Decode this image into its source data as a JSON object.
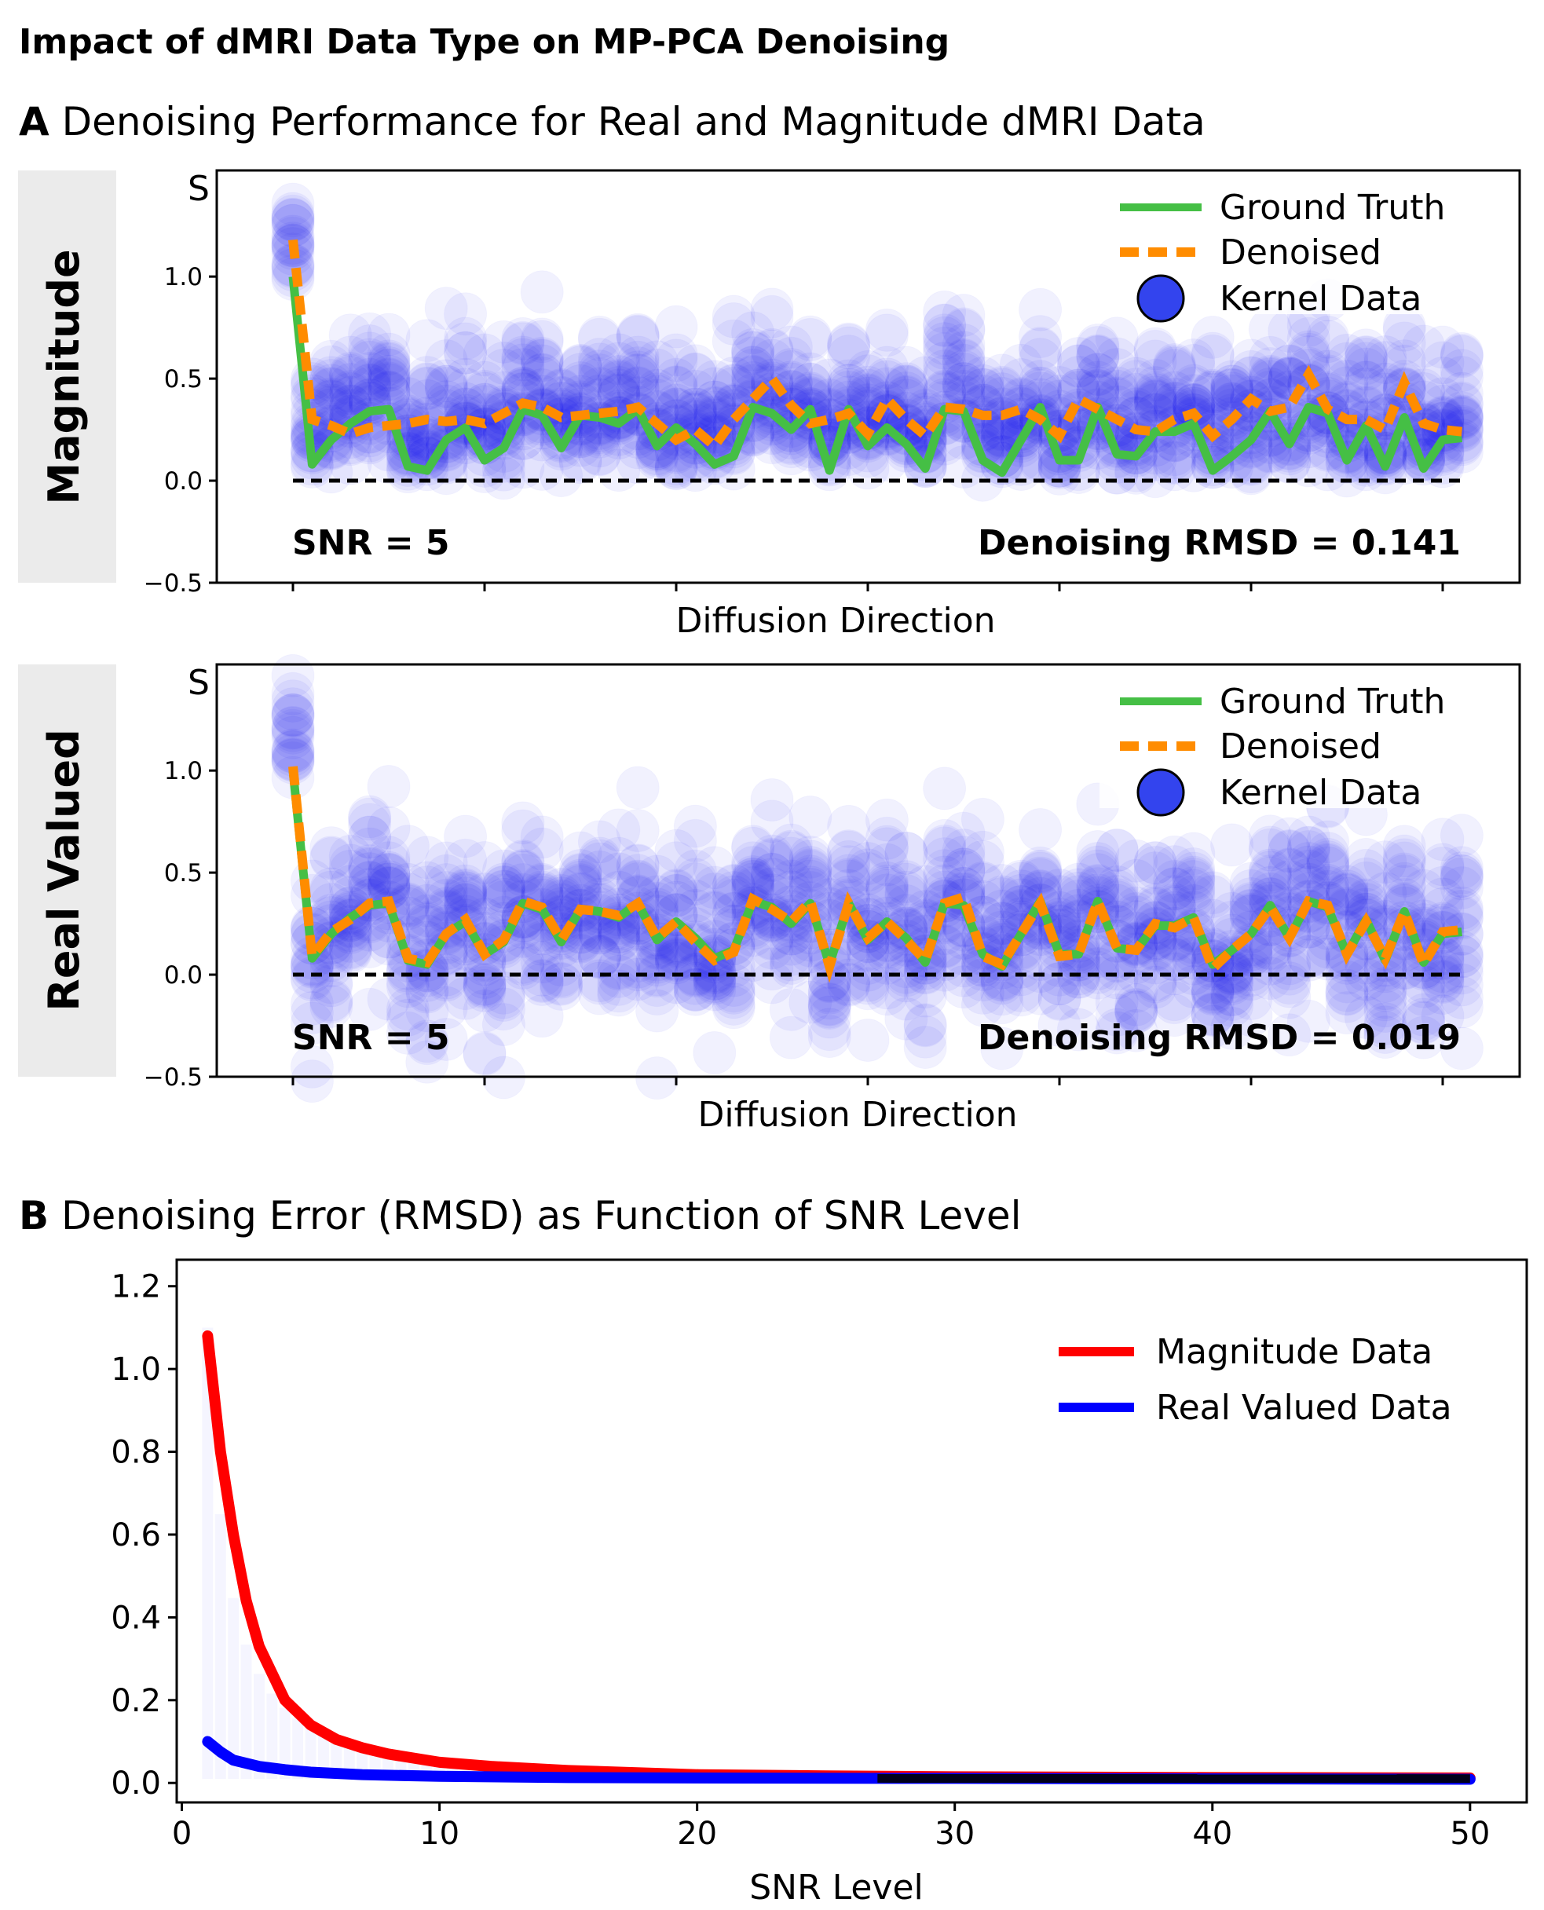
{
  "title": "Impact of dMRI Data Type on MP-PCA Denoising",
  "panel_a": {
    "letter": "A",
    "title": "Denoising Performance for Real and Magnitude dMRI Data"
  },
  "panel_b": {
    "letter": "B",
    "title": "Denoising Error (RMSD) as Function of SNR Level"
  },
  "colors": {
    "ground_truth": "#45bf45",
    "denoised": "#ff8c00",
    "kernel": "#1010ee",
    "magnitude": "#ff0000",
    "real": "#0000ff",
    "side_bg": "#ebebeb"
  },
  "chart_data": [
    {
      "type": "line",
      "row_label": "Magnitude",
      "ylabel": "S",
      "xlabel": "Diffusion Direction",
      "ylim": [
        -0.5,
        1.52
      ],
      "yticks": [
        "1.0",
        "0.5",
        "0.0",
        "−0.5"
      ],
      "ytick_values": [
        1.0,
        0.5,
        0.0,
        -0.5
      ],
      "xtick_values": [
        0,
        10,
        20,
        30,
        40,
        50,
        60
      ],
      "legend": [
        "Ground Truth",
        "Denoised",
        "Kernel Data"
      ],
      "legend_placement": "top-right",
      "snr_label": "SNR = 5",
      "rmsd_label": "Denoising RMSD = 0.141",
      "kernel_noise_sigma": 0.2,
      "ground_truth": [
        1.0,
        0.08,
        0.2,
        0.28,
        0.34,
        0.35,
        0.07,
        0.05,
        0.2,
        0.26,
        0.1,
        0.16,
        0.35,
        0.32,
        0.16,
        0.32,
        0.31,
        0.28,
        0.35,
        0.17,
        0.26,
        0.18,
        0.08,
        0.12,
        0.36,
        0.33,
        0.25,
        0.35,
        0.05,
        0.35,
        0.17,
        0.26,
        0.18,
        0.06,
        0.35,
        0.34,
        0.1,
        0.04,
        0.2,
        0.36,
        0.1,
        0.1,
        0.36,
        0.13,
        0.12,
        0.24,
        0.24,
        0.28,
        0.05,
        0.12,
        0.2,
        0.34,
        0.18,
        0.36,
        0.33,
        0.1,
        0.27,
        0.07,
        0.31,
        0.06,
        0.2,
        0.21
      ],
      "denoised": [
        1.18,
        0.3,
        0.27,
        0.23,
        0.26,
        0.27,
        0.28,
        0.3,
        0.29,
        0.3,
        0.28,
        0.33,
        0.38,
        0.36,
        0.31,
        0.32,
        0.33,
        0.34,
        0.36,
        0.28,
        0.2,
        0.25,
        0.17,
        0.3,
        0.4,
        0.5,
        0.37,
        0.28,
        0.3,
        0.33,
        0.23,
        0.4,
        0.3,
        0.22,
        0.36,
        0.35,
        0.32,
        0.32,
        0.35,
        0.3,
        0.22,
        0.4,
        0.35,
        0.3,
        0.25,
        0.24,
        0.3,
        0.33,
        0.22,
        0.3,
        0.4,
        0.34,
        0.36,
        0.52,
        0.35,
        0.3,
        0.3,
        0.25,
        0.48,
        0.28,
        0.25,
        0.24
      ]
    },
    {
      "type": "line",
      "row_label": "Real Valued",
      "ylabel": "S",
      "xlabel": "Diffusion Direction",
      "ylim": [
        -0.5,
        1.52
      ],
      "yticks": [
        "1.0",
        "0.5",
        "0.0",
        "−0.5"
      ],
      "ytick_values": [
        1.0,
        0.5,
        0.0,
        -0.5
      ],
      "xtick_values": [
        0,
        10,
        20,
        30,
        40,
        50,
        60
      ],
      "legend": [
        "Ground Truth",
        "Denoised",
        "Kernel Data"
      ],
      "legend_placement": "top-right",
      "snr_label": "SNR = 5",
      "rmsd_label": "Denoising RMSD = 0.019",
      "kernel_noise_sigma": 0.2,
      "ground_truth": [
        1.0,
        0.08,
        0.2,
        0.28,
        0.34,
        0.35,
        0.07,
        0.05,
        0.2,
        0.26,
        0.1,
        0.16,
        0.35,
        0.32,
        0.16,
        0.32,
        0.31,
        0.28,
        0.35,
        0.17,
        0.26,
        0.18,
        0.08,
        0.12,
        0.36,
        0.33,
        0.25,
        0.35,
        0.05,
        0.35,
        0.17,
        0.26,
        0.18,
        0.06,
        0.35,
        0.34,
        0.1,
        0.04,
        0.2,
        0.36,
        0.1,
        0.1,
        0.36,
        0.13,
        0.12,
        0.24,
        0.24,
        0.28,
        0.05,
        0.12,
        0.2,
        0.34,
        0.18,
        0.36,
        0.33,
        0.1,
        0.27,
        0.07,
        0.31,
        0.06,
        0.2,
        0.21
      ],
      "denoised": [
        1.02,
        0.09,
        0.21,
        0.27,
        0.35,
        0.36,
        0.08,
        0.06,
        0.2,
        0.27,
        0.1,
        0.17,
        0.36,
        0.33,
        0.17,
        0.32,
        0.31,
        0.29,
        0.35,
        0.18,
        0.26,
        0.16,
        0.07,
        0.11,
        0.37,
        0.32,
        0.26,
        0.36,
        0.04,
        0.35,
        0.18,
        0.26,
        0.17,
        0.07,
        0.35,
        0.38,
        0.09,
        0.05,
        0.2,
        0.35,
        0.09,
        0.1,
        0.36,
        0.13,
        0.12,
        0.25,
        0.23,
        0.28,
        0.03,
        0.12,
        0.2,
        0.33,
        0.18,
        0.36,
        0.34,
        0.1,
        0.26,
        0.08,
        0.31,
        0.05,
        0.21,
        0.22
      ]
    },
    {
      "type": "line",
      "xlabel": "SNR Level",
      "ylabel": "",
      "xlim": [
        -0.2,
        52.2
      ],
      "ylim": [
        -0.047,
        1.264
      ],
      "xticks": [
        "0",
        "10",
        "20",
        "30",
        "40",
        "50"
      ],
      "xtick_values": [
        0,
        10,
        20,
        30,
        40,
        50
      ],
      "yticks": [
        "0.0",
        "0.2",
        "0.4",
        "0.6",
        "0.8",
        "1.0",
        "1.2"
      ],
      "ytick_values": [
        0,
        0.2,
        0.4,
        0.6,
        0.8,
        1.0,
        1.2
      ],
      "legend_placement": "top-right",
      "series": [
        {
          "name": "Magnitude Data",
          "x": [
            1,
            1.5,
            2,
            2.5,
            3,
            4,
            5,
            6,
            7,
            8,
            10,
            12,
            15,
            20,
            25,
            30,
            40,
            50
          ],
          "values": [
            1.08,
            0.8,
            0.6,
            0.44,
            0.33,
            0.2,
            0.14,
            0.105,
            0.085,
            0.07,
            0.05,
            0.04,
            0.03,
            0.02,
            0.017,
            0.015,
            0.013,
            0.012
          ]
        },
        {
          "name": "Real Valued Data",
          "x": [
            1,
            1.5,
            2,
            3,
            4,
            5,
            7,
            10,
            15,
            20,
            30,
            40,
            50
          ],
          "values": [
            0.1,
            0.075,
            0.055,
            0.04,
            0.032,
            0.026,
            0.02,
            0.016,
            0.013,
            0.012,
            0.011,
            0.01,
            0.009
          ]
        }
      ]
    }
  ]
}
